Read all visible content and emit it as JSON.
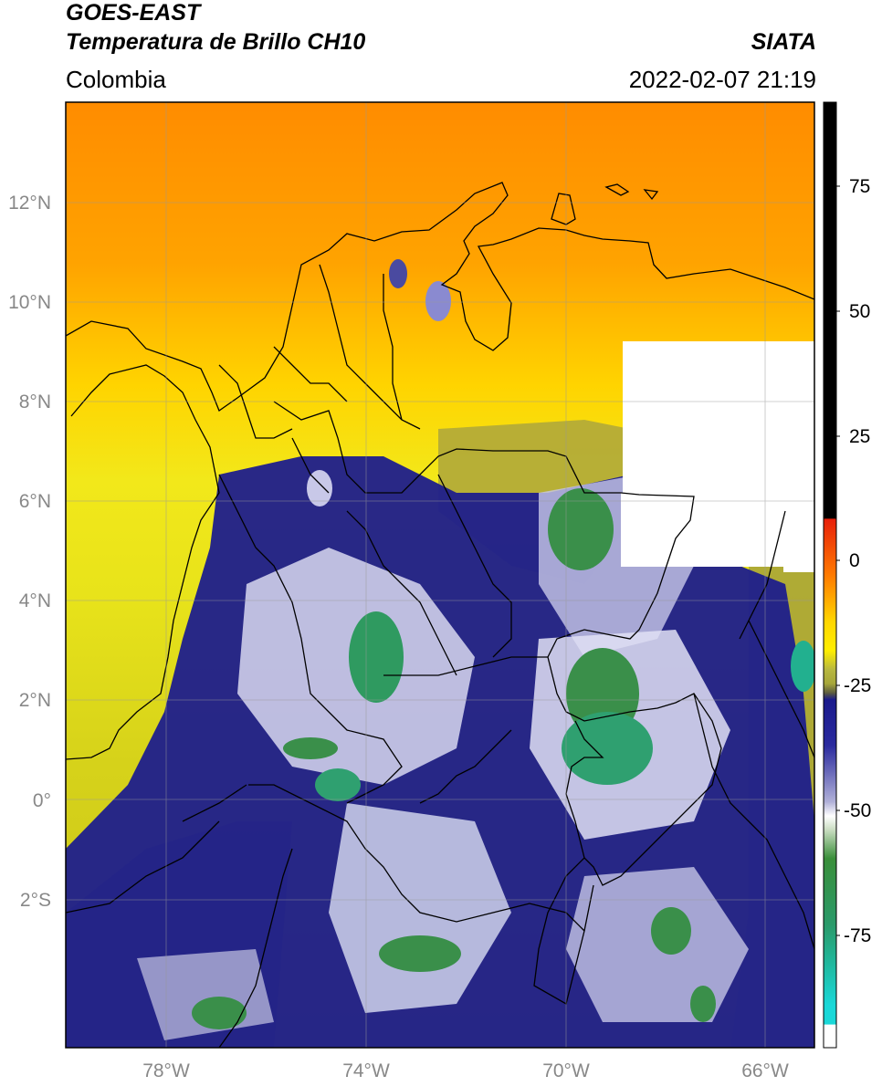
{
  "header": {
    "satellite": "GOES-EAST",
    "product": "Temperatura de Brillo CH10",
    "source": "SIATA",
    "region": "Colombia",
    "datetime": "2022-02-07 21:19"
  },
  "map": {
    "lon_range": [
      -80,
      -65
    ],
    "lat_range": [
      -5.0,
      14.0
    ],
    "lon_ticks": [
      "78°W",
      "74°W",
      "70°W",
      "66°W"
    ],
    "lat_ticks": [
      "12°N",
      "10°N",
      "8°N",
      "6°N",
      "4°N",
      "2°N",
      "0°",
      "2°S"
    ],
    "grid": true,
    "missing_data_color": "#ffffff"
  },
  "colorbar": {
    "range": [
      -100,
      90
    ],
    "ticks": [
      "75",
      "50",
      "25",
      "0",
      "-25",
      "-50",
      "-75"
    ],
    "colors": {
      "warm_black": "#000000",
      "red": "#e8200a",
      "orange": "#ff9900",
      "yellow": "#ffee00",
      "olive": "#a6a63a",
      "navy": "#1a1a8c",
      "white": "#ffffff",
      "green": "#3a8f3a",
      "teal": "#22b08f",
      "cyan": "#1ad8d8"
    }
  }
}
